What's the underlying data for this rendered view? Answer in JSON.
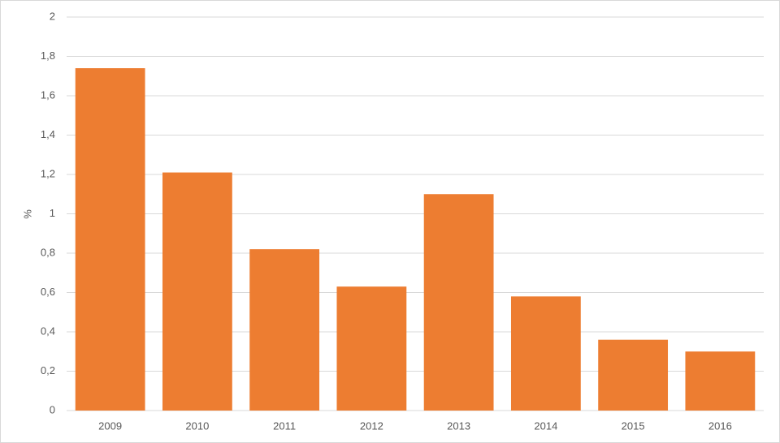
{
  "chart_data": {
    "type": "bar",
    "y_label": "%",
    "categories": [
      "2009",
      "2010",
      "2011",
      "2012",
      "2013",
      "2014",
      "2015",
      "2016"
    ],
    "values": [
      1.74,
      1.21,
      0.82,
      0.63,
      1.1,
      0.58,
      0.36,
      0.3
    ],
    "color": "#ed7d31",
    "ylim": [
      0,
      2
    ],
    "yticks": [
      0,
      {
        "value": 0.2,
        "label": "0,2"
      },
      {
        "value": 0.4,
        "label": "0,4"
      },
      {
        "value": 0.6,
        "label": "0,6"
      },
      {
        "value": 0.8,
        "label": "0,8"
      },
      1,
      {
        "value": 1.2,
        "label": "1,2"
      },
      {
        "value": 1.4,
        "label": "1,4"
      },
      {
        "value": 1.6,
        "label": "1,6"
      },
      {
        "value": 1.8,
        "label": "1,8"
      },
      2
    ],
    "grid": true
  }
}
